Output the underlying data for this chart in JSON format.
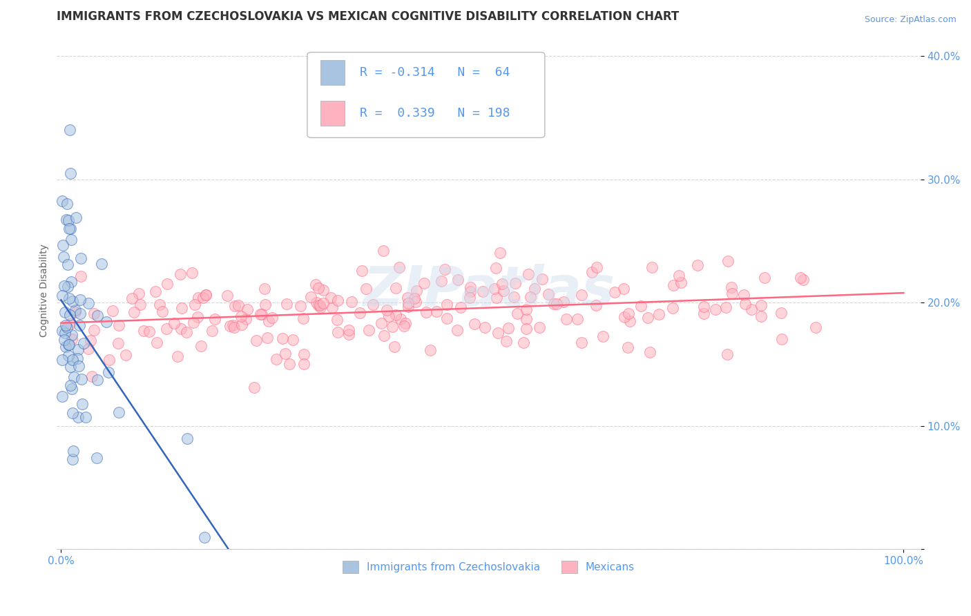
{
  "title": "IMMIGRANTS FROM CZECHOSLOVAKIA VS MEXICAN COGNITIVE DISABILITY CORRELATION CHART",
  "source": "Source: ZipAtlas.com",
  "ylabel": "Cognitive Disability",
  "xlim": [
    -0.005,
    1.02
  ],
  "ylim": [
    0.0,
    0.42
  ],
  "yticks": [
    0.0,
    0.1,
    0.2,
    0.3,
    0.4
  ],
  "ytick_labels": [
    "",
    "10.0%",
    "20.0%",
    "30.0%",
    "40.0%"
  ],
  "xticks": [
    0.0,
    1.0
  ],
  "xtick_labels": [
    "0.0%",
    "100.0%"
  ],
  "blue_R": -0.314,
  "blue_N": 64,
  "pink_R": 0.339,
  "pink_N": 198,
  "blue_color": "#A8C4E0",
  "pink_color": "#FFB3C0",
  "blue_line_color": "#3366BB",
  "pink_line_color": "#FF6680",
  "legend_blue_label": "Immigrants from Czechoslovakia",
  "legend_pink_label": "Mexicans",
  "watermark": "ZIPatlas",
  "background_color": "#FFFFFF",
  "grid_color": "#CCCCCC",
  "title_color": "#333333",
  "tick_color": "#5599EE",
  "source_color": "#5599EE",
  "title_fontsize": 12,
  "axis_label_fontsize": 10,
  "tick_fontsize": 11,
  "legend_fontsize": 13
}
